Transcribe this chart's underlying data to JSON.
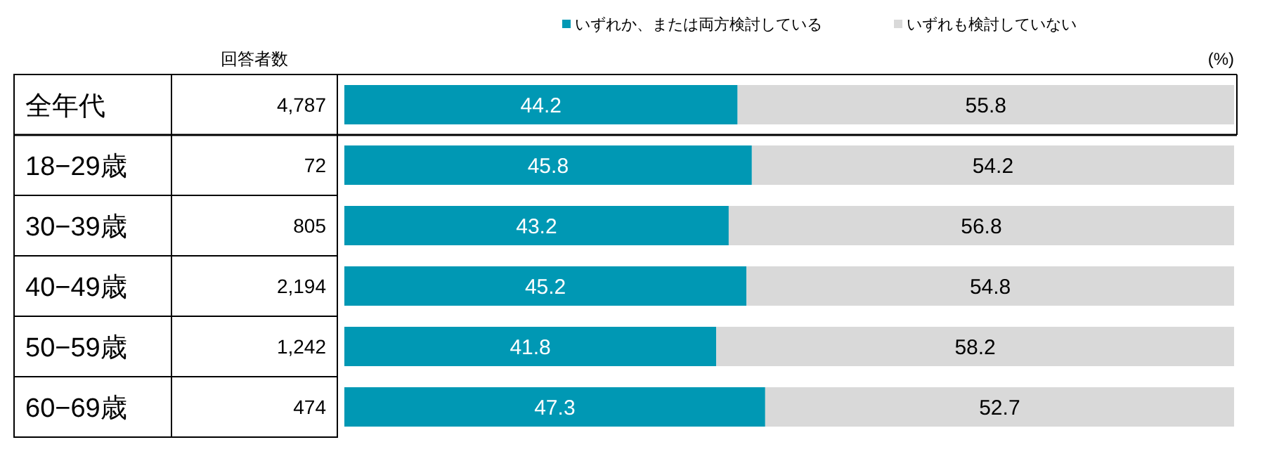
{
  "chart_data": {
    "type": "bar",
    "orientation": "horizontal",
    "stacked": true,
    "data_labels": true,
    "legend": "top right",
    "xlim": [
      0,
      100
    ],
    "categories": [
      "全年代",
      "18−29歳",
      "30−39歳",
      "40−49歳",
      "50−59歳",
      "60−69歳"
    ],
    "series": [
      {
        "name": "いずれか、または両方検討している",
        "color": "#0098b4",
        "values": [
          44.2,
          45.8,
          43.2,
          45.2,
          41.8,
          47.3
        ]
      },
      {
        "name": "いずれも検討していない",
        "color": "#d9d9d9",
        "values": [
          55.8,
          54.2,
          56.8,
          54.8,
          58.2,
          52.7
        ]
      }
    ],
    "annotations": [
      "回答者数",
      "(%)",
      "4,787",
      "72",
      "805",
      "2,194",
      "1,242",
      "474"
    ]
  }
}
